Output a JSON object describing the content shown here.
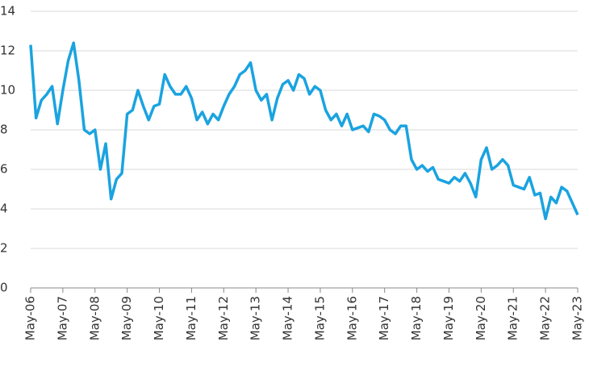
{
  "chart_data": {
    "type": "line",
    "x": [
      "2006-05",
      "2006-07",
      "2006-09",
      "2006-11",
      "2007-01",
      "2007-03",
      "2007-05",
      "2007-07",
      "2007-09",
      "2007-11",
      "2008-01",
      "2008-03",
      "2008-05",
      "2008-07",
      "2008-09",
      "2008-11",
      "2009-01",
      "2009-03",
      "2009-05",
      "2009-07",
      "2009-09",
      "2009-11",
      "2010-01",
      "2010-03",
      "2010-05",
      "2010-07",
      "2010-09",
      "2010-11",
      "2011-01",
      "2011-03",
      "2011-05",
      "2011-07",
      "2011-09",
      "2011-11",
      "2012-01",
      "2012-03",
      "2012-05",
      "2012-07",
      "2012-09",
      "2012-11",
      "2013-01",
      "2013-03",
      "2013-05",
      "2013-07",
      "2013-09",
      "2013-11",
      "2014-01",
      "2014-03",
      "2014-05",
      "2014-07",
      "2014-09",
      "2014-11",
      "2015-01",
      "2015-03",
      "2015-05",
      "2015-07",
      "2015-09",
      "2015-11",
      "2016-01",
      "2016-03",
      "2016-05",
      "2016-07",
      "2016-09",
      "2016-11",
      "2017-01",
      "2017-03",
      "2017-05",
      "2017-07",
      "2017-09",
      "2017-11",
      "2018-01",
      "2018-03",
      "2018-05",
      "2018-07",
      "2018-09",
      "2018-11",
      "2019-01",
      "2019-03",
      "2019-05",
      "2019-07",
      "2019-09",
      "2019-11",
      "2020-01",
      "2020-03",
      "2020-05",
      "2020-07",
      "2020-09",
      "2020-11",
      "2021-01",
      "2021-03",
      "2021-05",
      "2021-07",
      "2021-09",
      "2021-11",
      "2022-01",
      "2022-03",
      "2022-05",
      "2022-07",
      "2022-09",
      "2022-11",
      "2023-01",
      "2023-03",
      "2023-05"
    ],
    "series": [
      {
        "color": "#1aa3e0",
        "values": [
          12.3,
          8.6,
          9.5,
          9.8,
          10.2,
          8.3,
          10.0,
          11.5,
          12.4,
          10.5,
          8.0,
          7.8,
          8.0,
          6.0,
          7.3,
          4.5,
          5.5,
          5.8,
          8.8,
          9.0,
          10.0,
          9.2,
          8.5,
          9.2,
          9.3,
          10.8,
          10.2,
          9.8,
          9.8,
          10.2,
          9.6,
          8.5,
          8.9,
          8.3,
          8.8,
          8.5,
          9.2,
          9.8,
          10.2,
          10.8,
          11.0,
          11.4,
          10.0,
          9.5,
          9.8,
          8.5,
          9.6,
          10.3,
          10.5,
          10.0,
          10.8,
          10.6,
          9.8,
          10.2,
          10.0,
          9.0,
          8.5,
          8.8,
          8.2,
          8.8,
          8.0,
          8.1,
          8.2,
          7.9,
          8.8,
          8.7,
          8.5,
          8.0,
          7.8,
          8.2,
          8.2,
          6.5,
          6.0,
          6.2,
          5.9,
          6.1,
          5.5,
          5.4,
          5.3,
          5.6,
          5.4,
          5.8,
          5.3,
          4.6,
          6.5,
          7.1,
          6.0,
          6.2,
          6.5,
          6.2,
          5.2,
          5.1,
          5.0,
          5.6,
          4.7,
          4.8,
          3.5,
          4.6,
          4.3,
          5.1,
          4.9,
          4.3,
          3.7
        ]
      }
    ],
    "xlim": [
      "2006-05",
      "2023-05"
    ],
    "xticks": [
      {
        "value": "2006-05",
        "label": "May-06"
      },
      {
        "value": "2007-05",
        "label": "May-07"
      },
      {
        "value": "2008-05",
        "label": "May-08"
      },
      {
        "value": "2009-05",
        "label": "May-09"
      },
      {
        "value": "2010-05",
        "label": "May-10"
      },
      {
        "value": "2011-05",
        "label": "May-11"
      },
      {
        "value": "2012-05",
        "label": "May-12"
      },
      {
        "value": "2013-05",
        "label": "May-13"
      },
      {
        "value": "2014-05",
        "label": "May-14"
      },
      {
        "value": "2015-05",
        "label": "May-15"
      },
      {
        "value": "2016-05",
        "label": "May-16"
      },
      {
        "value": "2017-05",
        "label": "May-17"
      },
      {
        "value": "2018-05",
        "label": "May-18"
      },
      {
        "value": "2019-05",
        "label": "May-19"
      },
      {
        "value": "2020-05",
        "label": "May-20"
      },
      {
        "value": "2021-05",
        "label": "May-21"
      },
      {
        "value": "2022-05",
        "label": "May-22"
      },
      {
        "value": "2023-05",
        "label": "May-23"
      }
    ],
    "ylim": [
      0,
      14
    ],
    "yticks": [
      0,
      2,
      4,
      6,
      8,
      10,
      12,
      14
    ],
    "grid": true
  }
}
